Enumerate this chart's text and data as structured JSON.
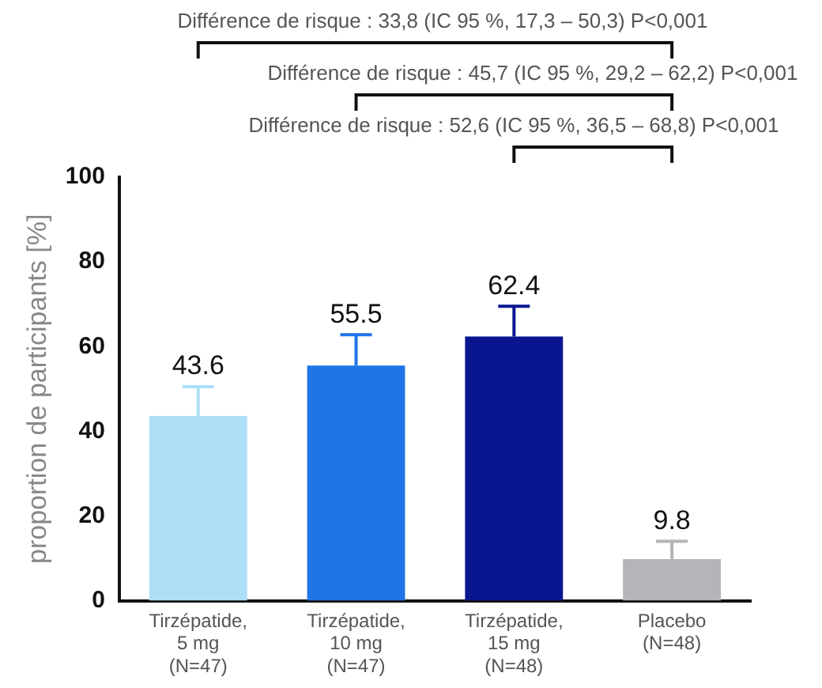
{
  "chart_data": {
    "type": "bar",
    "ylabel": "proportion de participants [%]",
    "categories": [
      "Tirzépatide,\n5 mg\n(N=47)",
      "Tirzépatide,\n10 mg\n(N=47)",
      "Tirzépatide,\n15 mg\n(N=48)",
      "Placebo\n(N=48)"
    ],
    "values": [
      43.6,
      55.5,
      62.4,
      9.8
    ],
    "colors": [
      "#addff7",
      "#1f74e6",
      "#0a1690",
      "#b4b4ba"
    ],
    "errors": [
      [
        43.6,
        50.5
      ],
      [
        55.5,
        62.8
      ],
      [
        62.4,
        69.5
      ],
      [
        9.8,
        14
      ]
    ],
    "data_labels": true,
    "ylim": [
      0,
      100
    ],
    "yticks": [
      0,
      20,
      40,
      60,
      80,
      100
    ],
    "grid": false,
    "legend": false,
    "annotations": [
      "Différence de risque : 33,8 (IC 95 %, 17,3 – 50,3) P<0,001",
      "Différence de risque : 45,7 (IC 95 %, 29,2 – 62,2) P<0,001",
      "Différence de risque : 52,6 (IC 95 %, 36,5 – 68,8) P<0,001"
    ]
  }
}
